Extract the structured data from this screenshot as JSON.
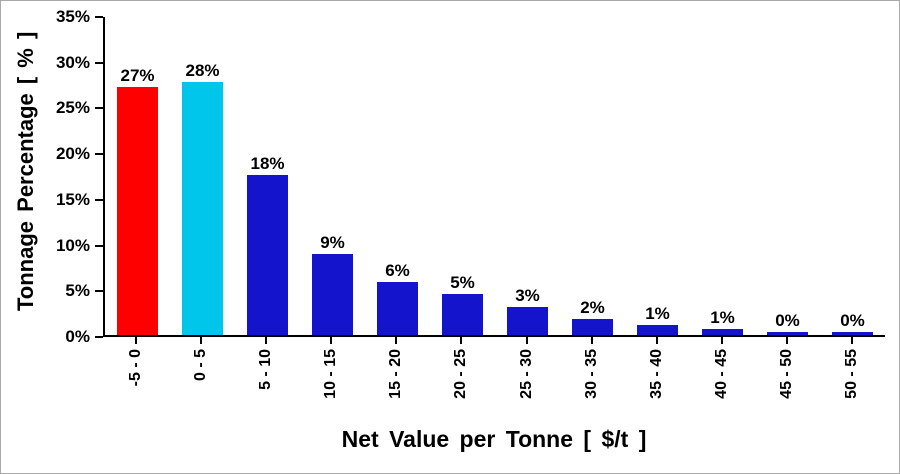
{
  "chart_data": {
    "type": "bar",
    "title": "",
    "xlabel": "Net Value per Tonne [ $/t ]",
    "ylabel": "Tonnage Percentage [ % ]",
    "categories": [
      "-5 - 0",
      "0 - 5",
      "5 - 10",
      "10 - 15",
      "15 - 20",
      "20 - 25",
      "25 - 30",
      "30 - 35",
      "35 - 40",
      "40 - 45",
      "45 - 50",
      "50 - 55"
    ],
    "values": [
      27.3,
      27.8,
      17.6,
      8.9,
      5.8,
      4.5,
      3.1,
      1.8,
      1.1,
      0.7,
      0.3,
      0.3
    ],
    "labels": [
      "27%",
      "28%",
      "18%",
      "9%",
      "6%",
      "5%",
      "3%",
      "2%",
      "1%",
      "1%",
      "0%",
      "0%"
    ],
    "bar_colors": [
      "#FF0000",
      "#00C6EC",
      "#1414CC",
      "#1414CC",
      "#1414CC",
      "#1414CC",
      "#1414CC",
      "#1414CC",
      "#1414CC",
      "#1414CC",
      "#1414CC",
      "#1414CC"
    ],
    "ylim": [
      0,
      35
    ],
    "yticks": [
      0,
      5,
      10,
      15,
      20,
      25,
      30,
      35
    ],
    "ytick_labels": [
      "0%",
      "5%",
      "10%",
      "15%",
      "20%",
      "25%",
      "30%",
      "35%"
    ],
    "grid": false,
    "legend": "none",
    "axis_color": "#000000",
    "background_color": "#FFFFFF",
    "border_color": "#A9A9A9"
  }
}
